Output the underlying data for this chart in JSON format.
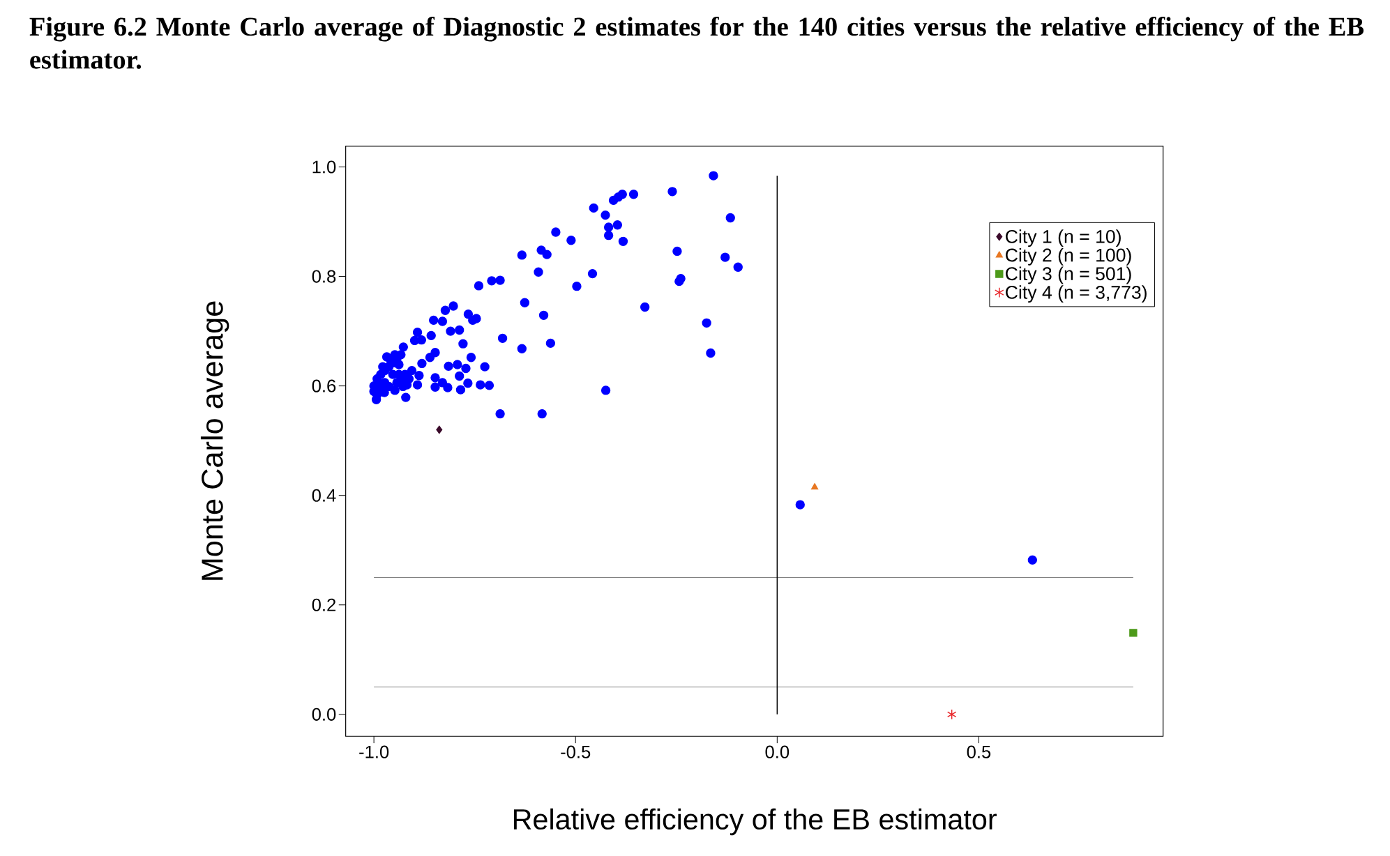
{
  "chart_data": {
    "type": "scatter",
    "title": "Figure 6.2 Monte Carlo average of Diagnostic 2 estimates for the 140 cities versus the relative efficiency of the EB estimator.",
    "xlabel": "Relative efficiency of the EB estimator",
    "ylabel": "Monte Carlo average",
    "xlim": [
      -1.07,
      0.957
    ],
    "ylim": [
      -0.04,
      1.038
    ],
    "xticks": [
      {
        "value": -1,
        "label": "-1.0"
      },
      {
        "value": -0.5,
        "label": "-0.5"
      },
      {
        "value": 0,
        "label": "0.0"
      },
      {
        "value": 0.5,
        "label": "0.5"
      }
    ],
    "yticks": [
      {
        "value": 0,
        "label": "0.0"
      },
      {
        "value": 0.2,
        "label": "0.2"
      },
      {
        "value": 0.4,
        "label": "0.4"
      },
      {
        "value": 0.6,
        "label": "0.6"
      },
      {
        "value": 0.8,
        "label": "0.8"
      },
      {
        "value": 1,
        "label": "1.0"
      }
    ],
    "legend": "top right",
    "ref_lines": [
      {
        "axis": "y",
        "value": 0.25,
        "color": "#808080"
      },
      {
        "axis": "y",
        "value": 0.05,
        "color": "#808080"
      },
      {
        "axis": "x",
        "value": 0,
        "color": "#000000"
      }
    ],
    "series": [
      {
        "color": "#0000ff",
        "marker": "circle",
        "x": [
          -0.158,
          -0.26,
          -0.356,
          -0.384,
          -0.394,
          -0.406,
          -0.455,
          -0.426,
          -0.116,
          -0.418,
          -0.396,
          -0.418,
          -0.382,
          -0.549,
          -0.511,
          -0.633,
          -0.585,
          -0.571,
          -0.248,
          -0.129,
          -0.097,
          -0.592,
          -0.458,
          -0.497,
          -0.243,
          -0.239,
          -0.74,
          -0.708,
          -0.687,
          -0.626,
          -0.579,
          -0.328,
          -0.175,
          -0.165,
          -0.681,
          -0.633,
          -0.562,
          -0.425,
          -0.687,
          -0.583,
          -0.803,
          -0.823,
          -0.852,
          -0.83,
          -0.766,
          -0.755,
          -0.746,
          -0.892,
          -0.858,
          -0.81,
          -0.788,
          -0.899,
          -0.882,
          -0.927,
          -0.779,
          -0.759,
          -0.848,
          -0.861,
          -0.881,
          -0.815,
          -0.793,
          -0.772,
          -0.725,
          -0.906,
          -0.888,
          -0.848,
          -0.788,
          -0.83,
          -0.767,
          -0.736,
          -0.714,
          -0.892,
          -0.848,
          -0.817,
          -0.785,
          -0.921,
          -0.994,
          -1.0,
          -1.0,
          -0.992,
          -0.983,
          -0.973,
          -0.963,
          -0.953,
          -0.943,
          -0.933,
          -0.938,
          -0.953,
          -0.973,
          -0.983,
          -0.974,
          -0.963,
          -0.943,
          -0.928,
          -0.928,
          -0.918,
          -0.948,
          -0.992,
          -0.968,
          -0.958,
          -0.948,
          -0.978,
          -0.987,
          -0.938,
          -0.923,
          -0.913,
          0.057,
          0.633
        ],
        "values": [
          0.984,
          0.955,
          0.95,
          0.95,
          0.945,
          0.939,
          0.925,
          0.912,
          0.907,
          0.89,
          0.894,
          0.875,
          0.864,
          0.881,
          0.866,
          0.839,
          0.848,
          0.84,
          0.846,
          0.835,
          0.817,
          0.808,
          0.805,
          0.782,
          0.791,
          0.796,
          0.783,
          0.792,
          0.793,
          0.752,
          0.729,
          0.744,
          0.715,
          0.66,
          0.687,
          0.668,
          0.678,
          0.592,
          0.549,
          0.549,
          0.746,
          0.738,
          0.72,
          0.718,
          0.731,
          0.72,
          0.723,
          0.698,
          0.692,
          0.7,
          0.702,
          0.683,
          0.684,
          0.671,
          0.677,
          0.652,
          0.661,
          0.652,
          0.641,
          0.636,
          0.639,
          0.632,
          0.635,
          0.628,
          0.619,
          0.615,
          0.618,
          0.606,
          0.605,
          0.602,
          0.601,
          0.602,
          0.598,
          0.597,
          0.593,
          0.579,
          0.575,
          0.6,
          0.59,
          0.613,
          0.621,
          0.628,
          0.635,
          0.642,
          0.65,
          0.657,
          0.639,
          0.621,
          0.606,
          0.595,
          0.588,
          0.599,
          0.606,
          0.613,
          0.599,
          0.602,
          0.592,
          0.584,
          0.653,
          0.646,
          0.657,
          0.635,
          0.602,
          0.621,
          0.621,
          0.613,
          0.383,
          0.282
        ]
      },
      {
        "name": "City 1 (n = 10)",
        "color": "#3a0a2a",
        "marker": "diamond",
        "x": [
          -0.838
        ],
        "values": [
          0.52
        ]
      },
      {
        "name": "City 2 (n = 100)",
        "color": "#e87722",
        "marker": "triangle",
        "x": [
          0.093
        ],
        "values": [
          0.415
        ]
      },
      {
        "name": "City 3 (n = 501)",
        "color": "#4d9a1a",
        "marker": "square",
        "x": [
          0.883
        ],
        "values": [
          0.149
        ]
      },
      {
        "name": "City 4 (n = 3,773)",
        "color": "#e8262a",
        "marker": "cross",
        "x": [
          0.433
        ],
        "values": [
          0.0
        ]
      }
    ]
  }
}
